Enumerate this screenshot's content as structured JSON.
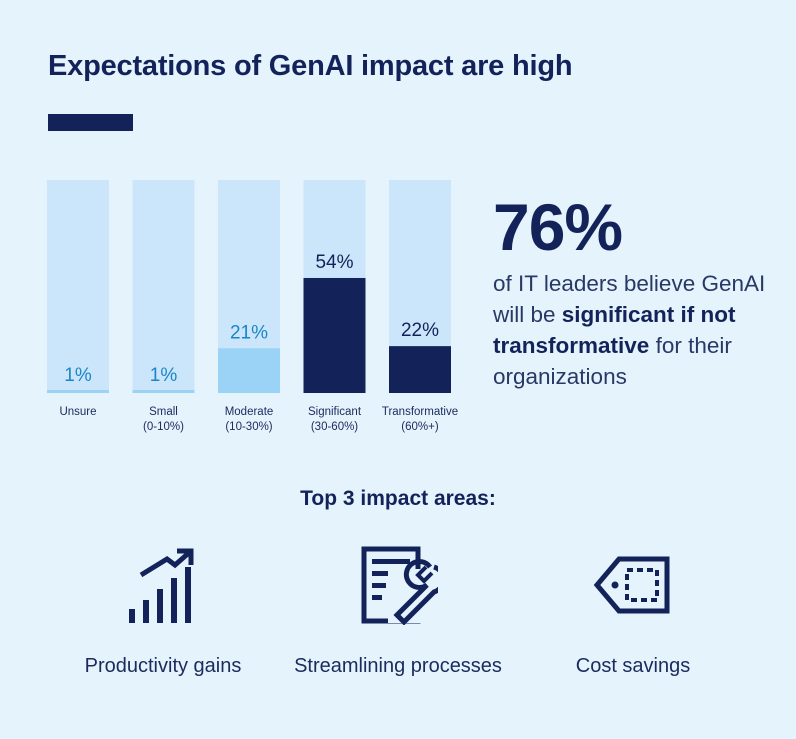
{
  "title": "Expectations of GenAI impact are high",
  "colors": {
    "background": "#e4f3fc",
    "navy": "#13235a",
    "track": "#cbe6fa",
    "light_fill": "#9ad3f6",
    "light_label": "#1a86c8"
  },
  "chart_data": {
    "type": "bar",
    "categories": [
      "Unsure",
      "Small\n(0-10%)",
      "Moderate\n(10-30%)",
      "Significant\n(30-60%)",
      "Transformative\n(60%+)"
    ],
    "values": [
      1,
      1,
      21,
      54,
      22
    ],
    "data_labels": [
      "1%",
      "1%",
      "21%",
      "54%",
      "22%"
    ],
    "ylim": [
      0,
      100
    ],
    "grid": false,
    "highlight": [
      false,
      false,
      false,
      true,
      true
    ]
  },
  "stat": {
    "value": "76%",
    "text_before": "of IT leaders believe GenAI will be ",
    "text_bold": "significant if not transformative",
    "text_after": " for their organizations"
  },
  "impact": {
    "heading": "Top 3 impact areas:",
    "areas": [
      {
        "label": "Productivity gains",
        "icon": "rising-bars-icon"
      },
      {
        "label": "Streamlining processes",
        "icon": "wrench-document-icon"
      },
      {
        "label": "Cost savings",
        "icon": "price-tag-icon"
      }
    ]
  }
}
